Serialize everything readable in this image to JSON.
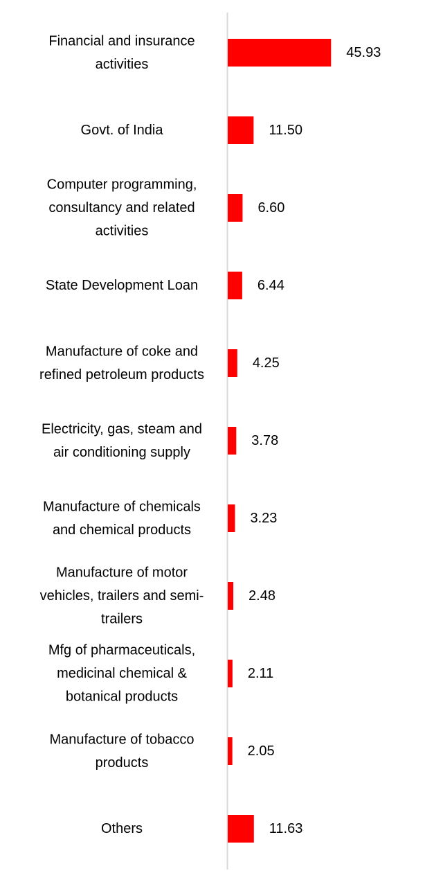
{
  "chart_data": {
    "type": "bar",
    "orientation": "horizontal",
    "categories": [
      [
        "Financial and insurance",
        "activities"
      ],
      [
        "Govt. of India"
      ],
      [
        "Computer programming,",
        "consultancy and related",
        "activities"
      ],
      [
        "State Development Loan"
      ],
      [
        "Manufacture of coke and",
        "refined petroleum products"
      ],
      [
        "Electricity, gas, steam and",
        "air conditioning supply"
      ],
      [
        "Manufacture of chemicals",
        "and chemical products"
      ],
      [
        "Manufacture of motor",
        "vehicles, trailers and semi-",
        "trailers"
      ],
      [
        "Mfg of pharmaceuticals,",
        "medicinal chemical &",
        "botanical products"
      ],
      [
        "Manufacture of tobacco",
        "products"
      ],
      [
        "Others"
      ]
    ],
    "values": [
      45.93,
      11.5,
      6.6,
      6.44,
      4.25,
      3.78,
      3.23,
      2.48,
      2.11,
      2.05,
      11.63
    ],
    "value_labels": [
      "45.93",
      "11.50",
      "6.60",
      "6.44",
      "4.25",
      "3.78",
      "3.23",
      "2.48",
      "2.11",
      "2.05",
      "11.63"
    ],
    "bar_color": "#ff0000",
    "axis_color": "#d9d9d9",
    "xlim": [
      0,
      100
    ],
    "grid": false,
    "legend": "none"
  }
}
